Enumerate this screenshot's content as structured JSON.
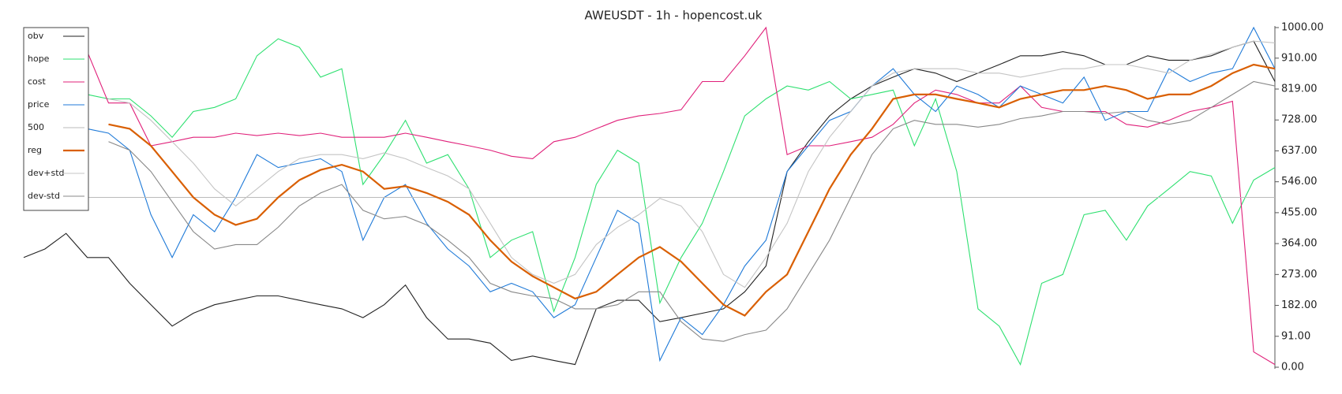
{
  "chart_data": {
    "type": "line",
    "title": "AWEUSDT - 1h - hopencost.uk",
    "ylim": [
      0,
      1000
    ],
    "yticks": [
      {
        "value": 0,
        "label": "0.00"
      },
      {
        "value": 91,
        "label": "91.00"
      },
      {
        "value": 182,
        "label": "182.00"
      },
      {
        "value": 273,
        "label": "273.00"
      },
      {
        "value": 364,
        "label": "364.00"
      },
      {
        "value": 455,
        "label": "455.00"
      },
      {
        "value": 546,
        "label": "546.00"
      },
      {
        "value": 637,
        "label": "637.00"
      },
      {
        "value": 728,
        "label": "728.00"
      },
      {
        "value": 819,
        "label": "819.00"
      },
      {
        "value": 910,
        "label": "910.00"
      },
      {
        "value": 1000,
        "label": "1000.00"
      }
    ],
    "legend": "upper left",
    "series": [
      {
        "name": "obv",
        "color": "#222222",
        "values": [
          323,
          348,
          394,
          323,
          323,
          247,
          184,
          121,
          159,
          184,
          197,
          210,
          210,
          197,
          184,
          172,
          146,
          184,
          242,
          146,
          83,
          83,
          71,
          20,
          33,
          20,
          8,
          172,
          197,
          197,
          134,
          146,
          159,
          172,
          222,
          298,
          576,
          664,
          740,
          790,
          828,
          854,
          879,
          866,
          841,
          866,
          891,
          917,
          917,
          929,
          917,
          891,
          891,
          917,
          904,
          904,
          917,
          942,
          960,
          841
        ]
      },
      {
        "name": "hope",
        "color": "#2ee070",
        "values": [
          null,
          null,
          null,
          803,
          790,
          790,
          740,
          677,
          753,
          765,
          790,
          917,
          967,
          942,
          854,
          879,
          538,
          626,
          727,
          601,
          626,
          525,
          323,
          374,
          399,
          164,
          323,
          538,
          639,
          601,
          189,
          323,
          424,
          576,
          740,
          790,
          828,
          816,
          841,
          790,
          803,
          816,
          652,
          790,
          576,
          172,
          121,
          8,
          247,
          273,
          449,
          462,
          374,
          475,
          525,
          576,
          563,
          424,
          551,
          588
        ]
      },
      {
        "name": "cost",
        "color": "#e0207a",
        "values": [
          null,
          null,
          null,
          929,
          778,
          778,
          652,
          664,
          677,
          677,
          689,
          682,
          689,
          682,
          689,
          677,
          677,
          677,
          689,
          677,
          664,
          652,
          639,
          621,
          614,
          664,
          677,
          702,
          727,
          740,
          747,
          758,
          841,
          841,
          917,
          1000,
          626,
          652,
          652,
          664,
          677,
          715,
          778,
          816,
          803,
          778,
          778,
          828,
          765,
          753,
          753,
          753,
          715,
          707,
          727,
          753,
          765,
          783,
          45,
          8
        ]
      },
      {
        "name": "price",
        "color": "#1f7ad8",
        "values": [
          null,
          null,
          null,
          702,
          689,
          639,
          449,
          323,
          449,
          399,
          500,
          626,
          588,
          601,
          614,
          576,
          374,
          500,
          538,
          424,
          348,
          298,
          222,
          247,
          222,
          146,
          184,
          323,
          462,
          424,
          20,
          146,
          96,
          184,
          298,
          374,
          576,
          652,
          727,
          753,
          828,
          879,
          803,
          753,
          828,
          803,
          765,
          828,
          803,
          778,
          854,
          727,
          753,
          753,
          879,
          841,
          866,
          879,
          1000,
          879
        ]
      },
      {
        "name": "500",
        "color": "#bbbbbb",
        "values": [
          500,
          500,
          500,
          500,
          500,
          500,
          500,
          500,
          500,
          500,
          500,
          500,
          500,
          500,
          500,
          500,
          500,
          500,
          500,
          500,
          500,
          500,
          500,
          500,
          500,
          500,
          500,
          500,
          500,
          500,
          500,
          500,
          500,
          500,
          500,
          500,
          500,
          500,
          500,
          500,
          500,
          500,
          500,
          500,
          500,
          500,
          500,
          500,
          500,
          500,
          500,
          500,
          500,
          500,
          500,
          500,
          500,
          500,
          500,
          500
        ]
      },
      {
        "name": "reg",
        "color": "#d95f02",
        "values": [
          null,
          null,
          null,
          null,
          715,
          702,
          652,
          576,
          500,
          449,
          419,
          437,
          500,
          551,
          581,
          596,
          576,
          525,
          533,
          513,
          487,
          449,
          374,
          311,
          268,
          235,
          202,
          222,
          273,
          323,
          354,
          311,
          247,
          184,
          152,
          222,
          273,
          399,
          525,
          626,
          702,
          790,
          803,
          803,
          790,
          778,
          765,
          790,
          803,
          816,
          816,
          828,
          816,
          790,
          803,
          803,
          828,
          866,
          891,
          879
        ]
      },
      {
        "name": "dev+std",
        "color": "#c4c4c4",
        "values": [
          null,
          null,
          null,
          null,
          790,
          778,
          727,
          664,
          601,
          525,
          475,
          525,
          576,
          614,
          626,
          626,
          614,
          631,
          614,
          588,
          563,
          525,
          424,
          323,
          273,
          247,
          273,
          361,
          412,
          449,
          497,
          475,
          399,
          273,
          235,
          323,
          424,
          576,
          677,
          753,
          828,
          866,
          879,
          879,
          879,
          866,
          866,
          854,
          866,
          879,
          879,
          891,
          891,
          879,
          866,
          904,
          922,
          942,
          960,
          955
        ]
      },
      {
        "name": "dev-std",
        "color": "#888888",
        "values": [
          null,
          null,
          null,
          null,
          664,
          639,
          576,
          487,
          399,
          348,
          361,
          361,
          412,
          475,
          513,
          538,
          462,
          437,
          444,
          419,
          374,
          323,
          247,
          222,
          210,
          202,
          172,
          172,
          184,
          222,
          222,
          134,
          83,
          76,
          96,
          109,
          172,
          273,
          374,
          500,
          626,
          702,
          727,
          715,
          715,
          707,
          715,
          732,
          740,
          753,
          753,
          747,
          753,
          727,
          715,
          727,
          765,
          803,
          841,
          828
        ]
      }
    ]
  }
}
